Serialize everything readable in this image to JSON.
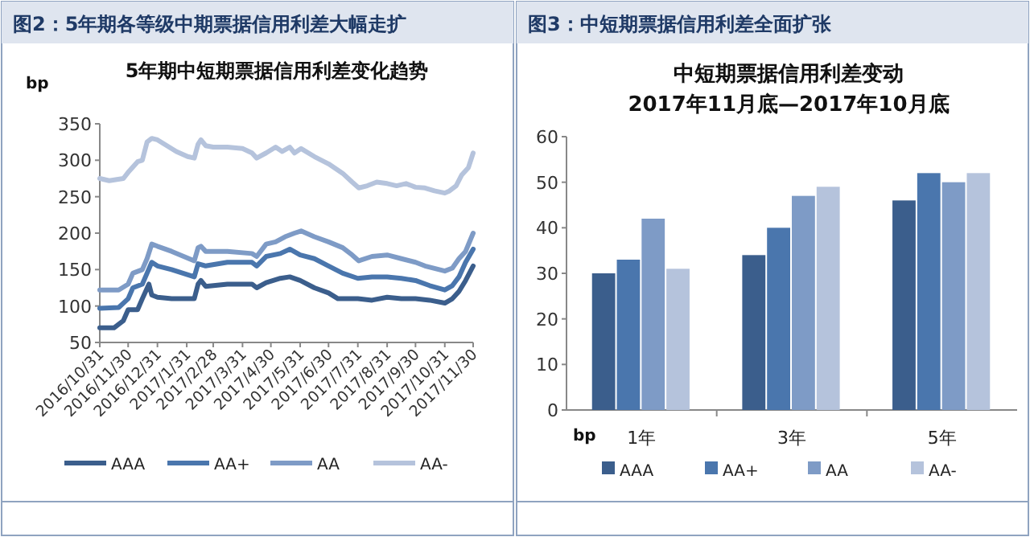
{
  "chart_data": [
    {
      "type": "line",
      "title": "图2：5年期各等级中期票据信用利差大幅走扩",
      "subtitle": "5年期中短期票据信用利差变化趋势",
      "ylabel": "bp",
      "xlim": [
        "2016-10-31",
        "2017-11-30"
      ],
      "xticks": [
        {
          "value": "2016-10-31",
          "label": "2016/10/31"
        },
        {
          "value": "2016-11-30",
          "label": "2016/11/30"
        },
        {
          "value": "2016-12-31",
          "label": "2016/12/31"
        },
        {
          "value": "2017-01-31",
          "label": "2017/1/31"
        },
        {
          "value": "2017-02-28",
          "label": "2017/2/28"
        },
        {
          "value": "2017-03-31",
          "label": "2017/3/31"
        },
        {
          "value": "2017-04-30",
          "label": "2017/4/30"
        },
        {
          "value": "2017-05-31",
          "label": "2017/5/31"
        },
        {
          "value": "2017-06-30",
          "label": "2017/6/30"
        },
        {
          "value": "2017-07-31",
          "label": "2017/7/31"
        },
        {
          "value": "2017-08-31",
          "label": "2017/8/31"
        },
        {
          "value": "2017-09-30",
          "label": "2017/9/30"
        },
        {
          "value": "2017-10-31",
          "label": "2017/10/31"
        },
        {
          "value": "2017-11-30",
          "label": "2017/11/30"
        }
      ],
      "ylim": [
        50,
        350
      ],
      "yticks": [
        50,
        100,
        150,
        200,
        250,
        300,
        350
      ],
      "grid": false,
      "legend": "bottom",
      "line_style": "solid",
      "marker": "none",
      "series": [
        {
          "name": "AAA",
          "color": "#3b5e8c",
          "x": [
            "2016-10-31",
            "2016-11-15",
            "2016-11-25",
            "2016-11-30",
            "2016-12-10",
            "2016-12-15",
            "2016-12-22",
            "2016-12-25",
            "2016-12-31",
            "2017-01-15",
            "2017-02-08",
            "2017-02-12",
            "2017-02-15",
            "2017-02-20",
            "2017-03-15",
            "2017-04-10",
            "2017-04-15",
            "2017-04-25",
            "2017-05-10",
            "2017-05-20",
            "2017-05-31",
            "2017-06-15",
            "2017-06-30",
            "2017-07-10",
            "2017-07-31",
            "2017-08-15",
            "2017-08-31",
            "2017-09-15",
            "2017-09-30",
            "2017-10-15",
            "2017-10-31",
            "2017-11-08",
            "2017-11-15",
            "2017-11-22",
            "2017-11-30"
          ],
          "values": [
            70,
            70,
            80,
            95,
            95,
            110,
            130,
            115,
            112,
            110,
            110,
            130,
            135,
            127,
            130,
            130,
            125,
            132,
            138,
            140,
            135,
            125,
            118,
            110,
            110,
            108,
            112,
            110,
            110,
            108,
            104,
            110,
            120,
            135,
            155
          ]
        },
        {
          "name": "AA+",
          "color": "#4a76ad",
          "x": [
            "2016-10-31",
            "2016-11-20",
            "2016-11-30",
            "2016-12-05",
            "2016-12-15",
            "2016-12-20",
            "2016-12-25",
            "2016-12-31",
            "2017-01-15",
            "2017-02-08",
            "2017-02-12",
            "2017-02-20",
            "2017-03-15",
            "2017-04-10",
            "2017-04-15",
            "2017-04-25",
            "2017-05-10",
            "2017-05-20",
            "2017-05-31",
            "2017-06-15",
            "2017-06-30",
            "2017-07-15",
            "2017-07-31",
            "2017-08-15",
            "2017-08-31",
            "2017-09-15",
            "2017-09-30",
            "2017-10-15",
            "2017-10-31",
            "2017-11-08",
            "2017-11-15",
            "2017-11-22",
            "2017-11-30"
          ],
          "values": [
            97,
            98,
            110,
            125,
            130,
            145,
            160,
            155,
            150,
            140,
            158,
            155,
            160,
            160,
            155,
            168,
            172,
            178,
            170,
            165,
            155,
            145,
            138,
            140,
            140,
            138,
            135,
            128,
            122,
            128,
            140,
            160,
            178
          ]
        },
        {
          "name": "AA",
          "color": "#7e9bc6",
          "x": [
            "2016-10-31",
            "2016-11-20",
            "2016-11-30",
            "2016-12-05",
            "2016-12-15",
            "2016-12-20",
            "2016-12-25",
            "2016-12-31",
            "2017-01-15",
            "2017-02-08",
            "2017-02-12",
            "2017-02-15",
            "2017-02-20",
            "2017-03-15",
            "2017-04-10",
            "2017-04-15",
            "2017-04-25",
            "2017-05-05",
            "2017-05-15",
            "2017-05-25",
            "2017-06-01",
            "2017-06-15",
            "2017-06-30",
            "2017-07-15",
            "2017-07-25",
            "2017-08-01",
            "2017-08-15",
            "2017-08-31",
            "2017-09-15",
            "2017-09-30",
            "2017-10-10",
            "2017-10-31",
            "2017-11-08",
            "2017-11-15",
            "2017-11-22",
            "2017-11-30"
          ],
          "values": [
            122,
            122,
            130,
            145,
            150,
            165,
            185,
            182,
            175,
            162,
            180,
            182,
            175,
            175,
            172,
            168,
            185,
            188,
            195,
            200,
            203,
            195,
            188,
            180,
            170,
            162,
            168,
            170,
            165,
            160,
            155,
            148,
            152,
            165,
            175,
            200
          ]
        },
        {
          "name": "AA-",
          "color": "#b5c3dc",
          "x": [
            "2016-10-31",
            "2016-11-10",
            "2016-11-25",
            "2016-12-01",
            "2016-12-10",
            "2016-12-15",
            "2016-12-20",
            "2016-12-25",
            "2016-12-31",
            "2017-01-10",
            "2017-01-20",
            "2017-02-01",
            "2017-02-08",
            "2017-02-12",
            "2017-02-15",
            "2017-02-20",
            "2017-02-28",
            "2017-03-15",
            "2017-03-31",
            "2017-04-10",
            "2017-04-15",
            "2017-04-25",
            "2017-05-05",
            "2017-05-12",
            "2017-05-20",
            "2017-05-25",
            "2017-06-01",
            "2017-06-15",
            "2017-06-30",
            "2017-07-15",
            "2017-07-25",
            "2017-08-01",
            "2017-08-10",
            "2017-08-20",
            "2017-08-31",
            "2017-09-10",
            "2017-09-20",
            "2017-09-30",
            "2017-10-10",
            "2017-10-20",
            "2017-10-31",
            "2017-11-05",
            "2017-11-12",
            "2017-11-18",
            "2017-11-25",
            "2017-11-30"
          ],
          "values": [
            275,
            272,
            275,
            285,
            298,
            300,
            325,
            330,
            328,
            320,
            312,
            305,
            303,
            322,
            328,
            320,
            318,
            318,
            316,
            310,
            303,
            310,
            318,
            312,
            318,
            310,
            316,
            305,
            295,
            282,
            270,
            262,
            265,
            270,
            268,
            265,
            268,
            263,
            262,
            258,
            255,
            258,
            265,
            280,
            290,
            310
          ]
        }
      ]
    },
    {
      "type": "bar",
      "title": "图3：中短期票据信用利差全面扩张",
      "subtitle": "中短期票据信用利差变动\n2017年11月底—2017年10月底",
      "annotations": [
        "bp"
      ],
      "categories": [
        "1年",
        "3年",
        "5年"
      ],
      "ylim": [
        0,
        60
      ],
      "yticks": [
        0,
        10,
        20,
        30,
        40,
        50,
        60
      ],
      "grid": false,
      "legend": "bottom",
      "series": [
        {
          "name": "AAA",
          "color": "#3b5e8c",
          "values": [
            30,
            34,
            46
          ]
        },
        {
          "name": "AA+",
          "color": "#4a76ad",
          "values": [
            33,
            40,
            52
          ]
        },
        {
          "name": "AA",
          "color": "#7e9bc6",
          "values": [
            42,
            47,
            50
          ]
        },
        {
          "name": "AA-",
          "color": "#b5c3dc",
          "values": [
            31,
            49,
            52
          ]
        }
      ]
    }
  ]
}
